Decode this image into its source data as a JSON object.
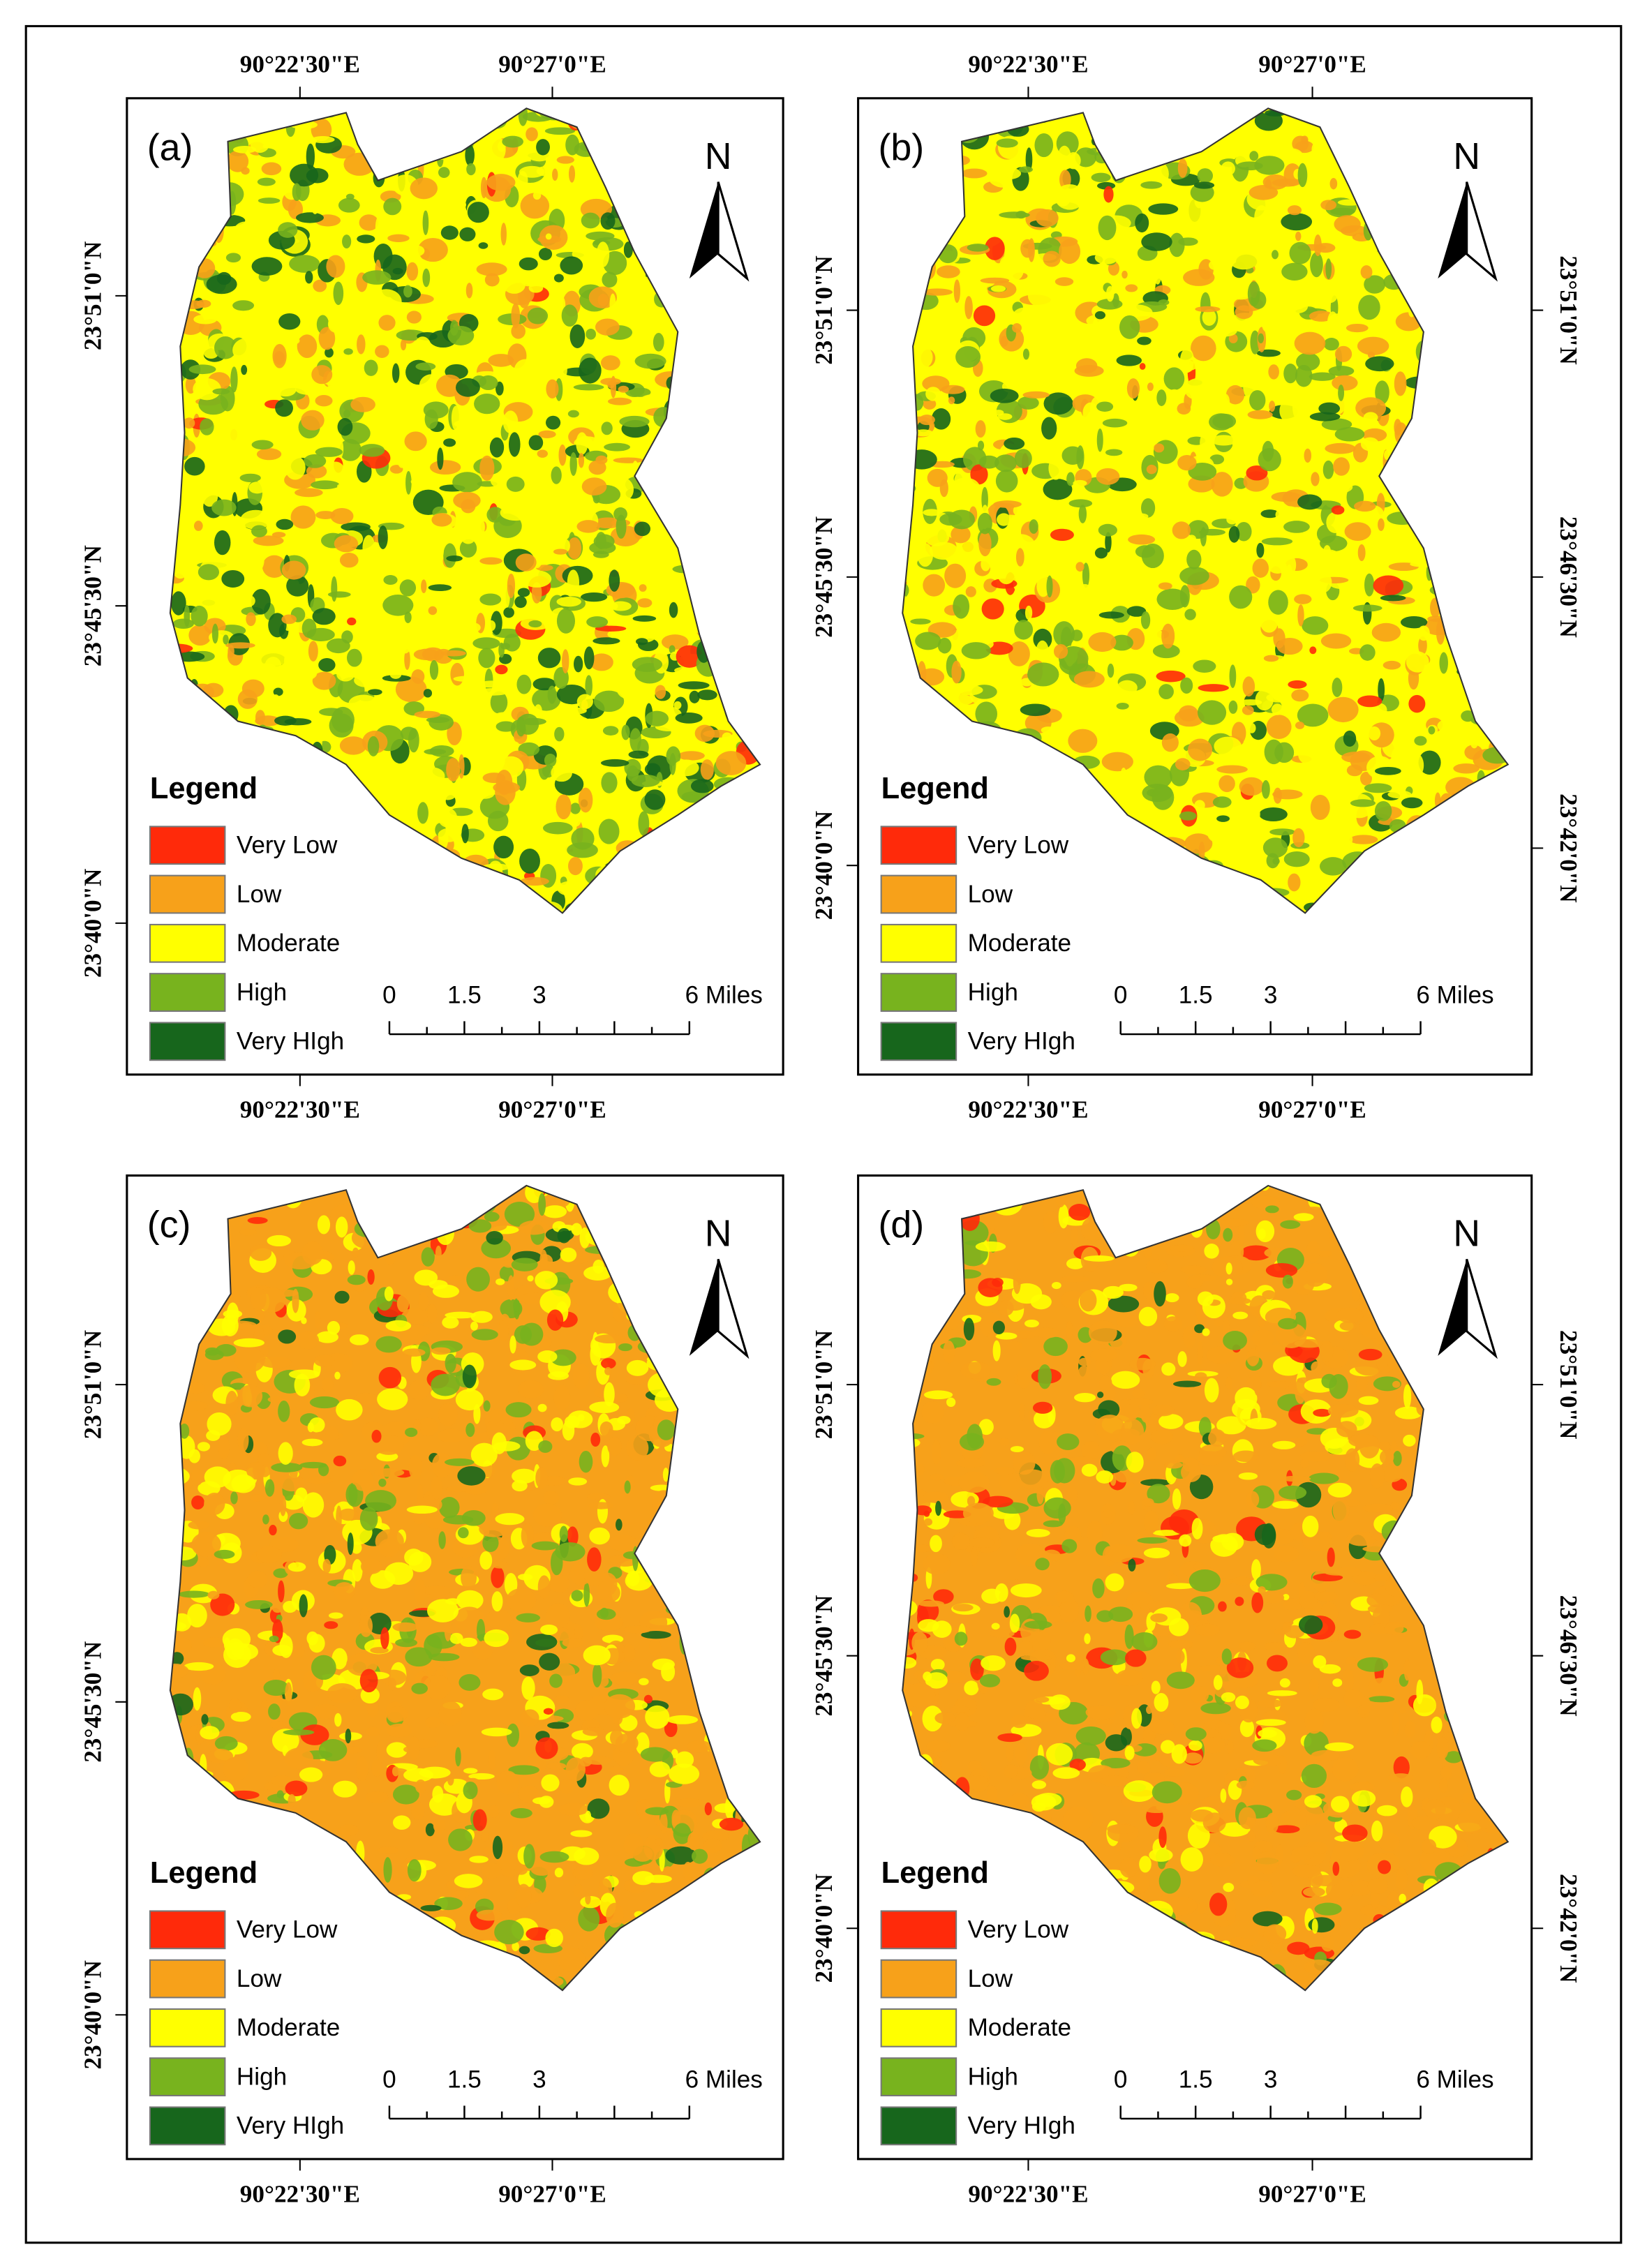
{
  "panels": [
    {
      "label": "(a)",
      "north": "N",
      "top_lon_labels": [
        "90°22'30\"E",
        "90°27'0\"E"
      ],
      "bottom_lon_labels": [
        "90°22'30\"E",
        "90°27'0\"E"
      ],
      "left_lat_labels": [
        "23°51'0\"N",
        "23°45'30\"N",
        "23°40'0\"N"
      ],
      "legend": {
        "title": "Legend",
        "items": [
          {
            "label": "Very Low",
            "color": "#ff2a0a"
          },
          {
            "label": "Low",
            "color": "#f7a11a"
          },
          {
            "label": "Moderate",
            "color": "#ffff00"
          },
          {
            "label": "High",
            "color": "#78b31e"
          },
          {
            "label": "Very HIgh",
            "color": "#17661c"
          }
        ]
      },
      "scale": [
        "0",
        "1.5",
        "3",
        "6 Miles"
      ]
    },
    {
      "label": "(b)",
      "north": "N",
      "top_lon_labels": [
        "90°22'30\"E",
        "90°27'0\"E"
      ],
      "bottom_lon_labels": [
        "90°22'30\"E",
        "90°27'0\"E"
      ],
      "left_lat_labels": [
        "23°51'0\"N",
        "23°45'30\"N",
        "23°40'0\"N"
      ],
      "right_lat_labels": [
        "23°51'0\"N",
        "23°46'30\"N",
        "23°42'0\"N"
      ],
      "legend": {
        "title": "Legend",
        "items": [
          {
            "label": "Very Low",
            "color": "#ff2a0a"
          },
          {
            "label": "Low",
            "color": "#f7a11a"
          },
          {
            "label": "Moderate",
            "color": "#ffff00"
          },
          {
            "label": "High",
            "color": "#78b31e"
          },
          {
            "label": "Very HIgh",
            "color": "#17661c"
          }
        ]
      },
      "scale": [
        "0",
        "1.5",
        "3",
        "6 Miles"
      ]
    },
    {
      "label": "(c)",
      "north": "N",
      "bottom_lon_labels": [
        "90°22'30\"E",
        "90°27'0\"E"
      ],
      "left_lat_labels": [
        "23°51'0\"N",
        "23°45'30\"N",
        "23°40'0\"N"
      ],
      "legend": {
        "title": "Legend",
        "items": [
          {
            "label": "Very Low",
            "color": "#ff2a0a"
          },
          {
            "label": "Low",
            "color": "#f7a11a"
          },
          {
            "label": "Moderate",
            "color": "#ffff00"
          },
          {
            "label": "High",
            "color": "#78b31e"
          },
          {
            "label": "Very HIgh",
            "color": "#17661c"
          }
        ]
      },
      "scale": [
        "0",
        "1.5",
        "3",
        "6 Miles"
      ]
    },
    {
      "label": "(d)",
      "north": "N",
      "bottom_lon_labels": [
        "90°22'30\"E",
        "90°27'0\"E"
      ],
      "left_lat_labels": [
        "23°51'0\"N",
        "23°45'30\"N",
        "23°40'0\"N"
      ],
      "right_lat_labels": [
        "23°51'0\"N",
        "23°46'30\"N",
        "23°42'0\"N"
      ],
      "legend": {
        "title": "Legend",
        "items": [
          {
            "label": "Very Low",
            "color": "#ff2a0a"
          },
          {
            "label": "Low",
            "color": "#f7a11a"
          },
          {
            "label": "Moderate",
            "color": "#ffff00"
          },
          {
            "label": "High",
            "color": "#78b31e"
          },
          {
            "label": "Very HIgh",
            "color": "#17661c"
          }
        ]
      },
      "scale": [
        "0",
        "1.5",
        "3",
        "6 Miles"
      ]
    }
  ]
}
